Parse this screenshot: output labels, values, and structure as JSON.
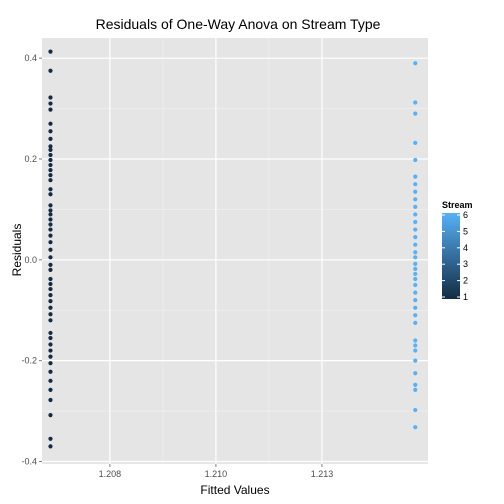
{
  "chart_data": {
    "type": "scatter",
    "title": "Residuals of One-Way Anova on Stream Type",
    "xlabel": "Fitted Values",
    "ylabel": "Residuals",
    "xlim": [
      1.2064,
      1.2155
    ],
    "ylim": [
      -0.405,
      0.44
    ],
    "x_ticks": [
      {
        "value": 1.208,
        "label": "1.208"
      },
      {
        "value": 1.2105,
        "label": "1.210"
      },
      {
        "value": 1.213,
        "label": "1.213"
      }
    ],
    "y_ticks": [
      {
        "value": -0.4,
        "label": "-0.4"
      },
      {
        "value": -0.2,
        "label": "-0.2"
      },
      {
        "value": 0.0,
        "label": "0.0"
      },
      {
        "value": 0.2,
        "label": "0.2"
      },
      {
        "value": 0.4,
        "label": "0.4"
      }
    ],
    "grid": true,
    "legend": {
      "title": "Stream",
      "placement": "right",
      "min": 1,
      "max": 6,
      "labels": [
        "6",
        "5",
        "4",
        "3",
        "2",
        "1"
      ],
      "low_color": "#132B43",
      "high_color": "#56B1F7"
    },
    "series": [
      {
        "x": 1.2066,
        "stream": 1,
        "residuals": [
          0.413,
          0.375,
          0.322,
          0.31,
          0.298,
          0.27,
          0.255,
          0.24,
          0.225,
          0.218,
          0.208,
          0.198,
          0.188,
          0.178,
          0.168,
          0.158,
          0.14,
          0.13,
          0.108,
          0.098,
          0.09,
          0.08,
          0.07,
          0.06,
          0.048,
          0.035,
          0.02,
          0.005,
          -0.01,
          -0.02,
          -0.038,
          -0.048,
          -0.058,
          -0.07,
          -0.082,
          -0.095,
          -0.108,
          -0.12,
          -0.145,
          -0.155,
          -0.168,
          -0.18,
          -0.192,
          -0.205,
          -0.222,
          -0.24,
          -0.258,
          -0.278,
          -0.308,
          -0.355,
          -0.37
        ]
      },
      {
        "x": 1.2152,
        "stream": 6,
        "residuals": [
          0.39,
          0.312,
          0.29,
          0.232,
          0.198,
          0.165,
          0.15,
          0.135,
          0.12,
          0.105,
          0.09,
          0.075,
          0.06,
          0.045,
          0.03,
          0.015,
          0.005,
          -0.008,
          -0.018,
          -0.028,
          -0.038,
          -0.05,
          -0.065,
          -0.08,
          -0.095,
          -0.11,
          -0.125,
          -0.16,
          -0.17,
          -0.18,
          -0.2,
          -0.225,
          -0.248,
          -0.258,
          -0.298,
          -0.332
        ]
      }
    ]
  }
}
